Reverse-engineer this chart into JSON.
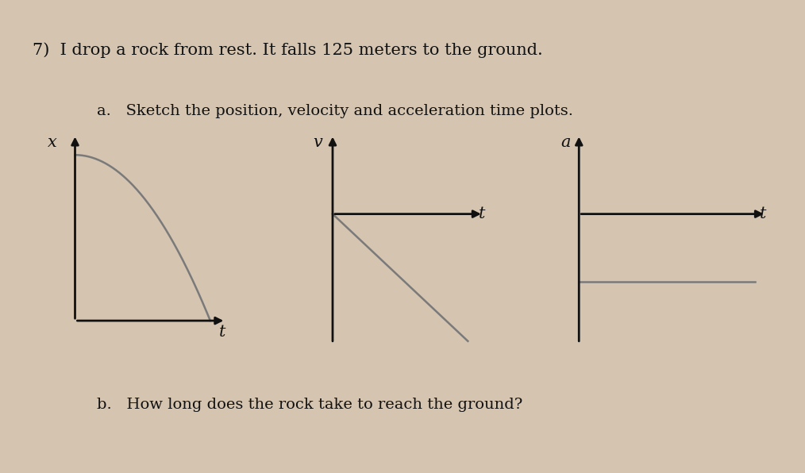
{
  "bg_color": "#d4c4b0",
  "title_text": "7)  I drop a rock from rest. It falls 125 meters to the ground.",
  "part_a_text": "a.   Sketch the position, velocity and acceleration time plots.",
  "part_b_text": "b.   How long does the rock take to reach the ground?",
  "plot1_xlabel": "t",
  "plot1_ylabel": "x",
  "plot2_xlabel": "t",
  "plot2_ylabel": "v",
  "plot3_xlabel": "t",
  "plot3_ylabel": "a",
  "curve_color": "#7a7a7a",
  "axis_color": "#111111",
  "text_color": "#111111",
  "title_fontsize": 15,
  "label_fontsize": 14,
  "axis_label_fontsize": 15
}
